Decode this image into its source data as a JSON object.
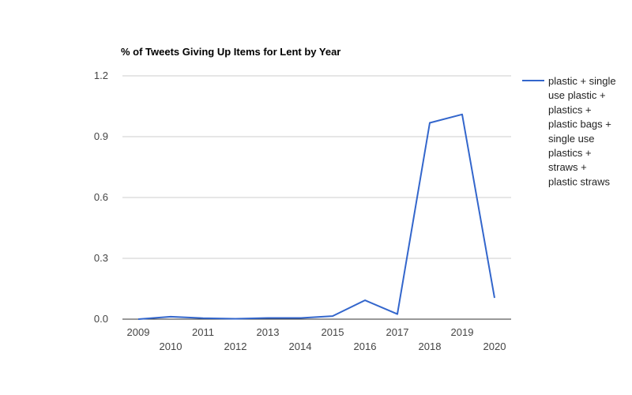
{
  "chart_data": {
    "type": "line",
    "title": "% of Tweets Giving Up Items for Lent by Year",
    "xlabel": "",
    "ylabel": "",
    "x": [
      "2009",
      "2010",
      "2011",
      "2012",
      "2013",
      "2014",
      "2015",
      "2016",
      "2017",
      "2018",
      "2019",
      "2020"
    ],
    "ylim": [
      0,
      1.2
    ],
    "yticks": [
      "0.0",
      "0.3",
      "0.6",
      "0.9",
      "1.2"
    ],
    "grid": true,
    "legend_position": "right",
    "series": [
      {
        "name": "plastic + single use plastic + plastics + plastic bags + single use plastics + straws + plastic straws",
        "legend_lines": [
          "plastic + single",
          "use plastic +",
          "plastics +",
          "plastic bags +",
          "single use",
          "plastics +",
          "straws +",
          "plastic straws"
        ],
        "color": "#3366cc",
        "values": [
          0.0,
          0.012,
          0.005,
          0.002,
          0.006,
          0.006,
          0.015,
          0.093,
          0.025,
          0.968,
          1.01,
          0.105
        ]
      }
    ]
  }
}
